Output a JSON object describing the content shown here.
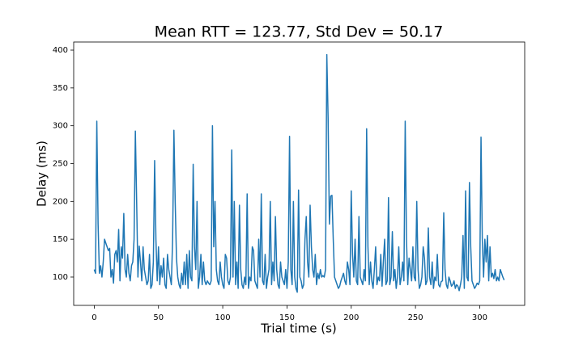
{
  "chart_data": {
    "type": "line",
    "title": "Mean RTT = 123.77, Std Dev = 50.17",
    "x_label": "Trial time (s)",
    "y_label": "Delay (ms)",
    "xlim": [
      -16,
      335
    ],
    "ylim": [
      62.6,
      410.7
    ],
    "xticks": [
      0,
      50,
      100,
      150,
      200,
      250,
      300
    ],
    "yticks": [
      100,
      150,
      200,
      250,
      300,
      350,
      400
    ],
    "grid": false,
    "x": [
      0,
      1,
      2,
      3,
      4,
      5,
      6,
      7,
      8,
      9,
      10,
      11,
      12,
      13,
      14,
      15,
      16,
      17,
      18,
      19,
      20,
      21,
      22,
      23,
      24,
      25,
      26,
      27,
      28,
      29,
      30,
      31,
      32,
      33,
      34,
      35,
      36,
      37,
      38,
      39,
      40,
      41,
      42,
      43,
      44,
      45,
      46,
      47,
      48,
      49,
      50,
      51,
      52,
      53,
      54,
      55,
      56,
      57,
      58,
      59,
      60,
      61,
      62,
      63,
      64,
      65,
      66,
      67,
      68,
      69,
      70,
      71,
      72,
      73,
      74,
      75,
      76,
      77,
      78,
      79,
      80,
      81,
      82,
      83,
      84,
      85,
      86,
      87,
      88,
      89,
      90,
      91,
      92,
      93,
      94,
      95,
      96,
      97,
      98,
      99,
      100,
      101,
      102,
      103,
      104,
      105,
      106,
      107,
      108,
      109,
      110,
      111,
      112,
      113,
      114,
      115,
      116,
      117,
      118,
      119,
      120,
      121,
      122,
      123,
      124,
      125,
      126,
      127,
      128,
      129,
      130,
      131,
      132,
      133,
      134,
      135,
      136,
      137,
      138,
      139,
      140,
      141,
      142,
      143,
      144,
      145,
      146,
      147,
      148,
      149,
      150,
      151,
      152,
      153,
      154,
      155,
      156,
      157,
      158,
      159,
      160,
      161,
      162,
      163,
      164,
      165,
      166,
      167,
      168,
      169,
      170,
      171,
      172,
      173,
      174,
      175,
      176,
      177,
      178,
      179,
      180,
      181,
      182,
      183,
      184,
      185,
      186,
      187,
      188,
      189,
      190,
      191,
      192,
      193,
      194,
      195,
      196,
      197,
      198,
      199,
      200,
      201,
      202,
      203,
      204,
      205,
      206,
      207,
      208,
      209,
      210,
      211,
      212,
      213,
      214,
      215,
      216,
      217,
      218,
      219,
      220,
      221,
      222,
      223,
      224,
      225,
      226,
      227,
      228,
      229,
      230,
      231,
      232,
      233,
      234,
      235,
      236,
      237,
      238,
      239,
      240,
      241,
      242,
      243,
      244,
      245,
      246,
      247,
      248,
      249,
      250,
      251,
      252,
      253,
      254,
      255,
      256,
      257,
      258,
      259,
      260,
      261,
      262,
      263,
      264,
      265,
      266,
      267,
      268,
      269,
      270,
      271,
      272,
      273,
      274,
      275,
      276,
      277,
      278,
      279,
      280,
      281,
      282,
      283,
      284,
      285,
      286,
      287,
      288,
      289,
      290,
      291,
      292,
      293,
      294,
      295,
      296,
      297,
      298,
      299,
      300,
      301,
      302,
      303,
      304,
      305,
      306,
      307,
      308,
      309,
      310,
      311,
      312,
      313,
      314,
      315,
      316,
      317,
      318,
      319
    ],
    "series": [
      {
        "color": "#1f77b4",
        "values": [
          110,
          105,
          306,
          170,
          105,
          115,
          100,
          120,
          150,
          145,
          140,
          135,
          138,
          100,
          110,
          92,
          130,
          135,
          120,
          163,
          95,
          140,
          125,
          184,
          110,
          100,
          130,
          105,
          95,
          115,
          120,
          150,
          293,
          200,
          100,
          141,
          120,
          95,
          140,
          110,
          100,
          90,
          95,
          130,
          85,
          90,
          120,
          254,
          150,
          95,
          140,
          90,
          115,
          100,
          125,
          90,
          85,
          130,
          110,
          100,
          90,
          150,
          294,
          200,
          125,
          100,
          90,
          85,
          105,
          90,
          120,
          90,
          130,
          85,
          135,
          100,
          95,
          249,
          140,
          110,
          200,
          85,
          100,
          130,
          90,
          120,
          95,
          90,
          95,
          92,
          90,
          95,
          300,
          140,
          200,
          110,
          95,
          90,
          120,
          100,
          90,
          85,
          130,
          125,
          95,
          90,
          100,
          268,
          100,
          200,
          90,
          120,
          85,
          195,
          110,
          90,
          85,
          100,
          90,
          210,
          85,
          100,
          95,
          140,
          135,
          95,
          90,
          85,
          150,
          100,
          210,
          95,
          90,
          130,
          85,
          100,
          110,
          200,
          90,
          120,
          95,
          180,
          110,
          90,
          85,
          120,
          100,
          95,
          90,
          110,
          85,
          120,
          286,
          110,
          90,
          200,
          100,
          85,
          80,
          215,
          100,
          95,
          85,
          90,
          150,
          180,
          120,
          100,
          195,
          140,
          110,
          100,
          130,
          90,
          105,
          98,
          110,
          100,
          102,
          100,
          110,
          394,
          310,
          170,
          207,
          208,
          150,
          100,
          95,
          90,
          85,
          88,
          95,
          100,
          105,
          95,
          90,
          120,
          110,
          90,
          214,
          130,
          100,
          150,
          95,
          90,
          180,
          100,
          95,
          90,
          110,
          95,
          296,
          140,
          90,
          120,
          95,
          85,
          110,
          140,
          90,
          100,
          95,
          130,
          88,
          120,
          150,
          90,
          95,
          205,
          90,
          100,
          160,
          95,
          110,
          85,
          100,
          140,
          90,
          100,
          120,
          95,
          306,
          150,
          90,
          125,
          110,
          95,
          140,
          100,
          95,
          200,
          110,
          85,
          90,
          100,
          140,
          125,
          90,
          95,
          165,
          100,
          90,
          120,
          85,
          100,
          95,
          130,
          90,
          87,
          94,
          95,
          185,
          110,
          90,
          85,
          100,
          95,
          88,
          90,
          95,
          85,
          90,
          88,
          82,
          90,
          100,
          155,
          85,
          214,
          100,
          95,
          225,
          140,
          95,
          90,
          85,
          88,
          92,
          90,
          95,
          285,
          150,
          100,
          150,
          120,
          155,
          95,
          140,
          100,
          105,
          98,
          110,
          95,
          100,
          95,
          110,
          105,
          100,
          96
        ]
      }
    ]
  }
}
